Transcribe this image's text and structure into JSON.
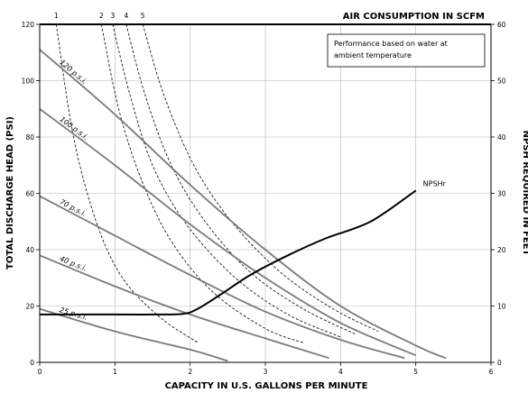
{
  "chart_data": {
    "type": "line",
    "xlabel": "CAPACITY IN U.S. GALLONS PER MINUTE",
    "ylabel": "TOTAL DISCHARGE HEAD (PSI)",
    "y2label": "NPSH REQUIRED IN FEET",
    "top_label": "AIR CONSUMPTION IN SCFM",
    "note": [
      "Performance based on water at",
      "ambient temperature"
    ],
    "xlim": [
      0,
      6
    ],
    "ylim": [
      0,
      120
    ],
    "y2lim": [
      0,
      60
    ],
    "xticks": [
      0,
      1,
      2,
      3,
      4,
      5,
      6
    ],
    "yticks": [
      0,
      20,
      40,
      60,
      80,
      100,
      120
    ],
    "y2ticks": [
      0,
      10,
      20,
      30,
      40,
      50,
      60
    ],
    "grid": true,
    "pressure_curves": [
      {
        "label": "120 p.s.i.",
        "points": [
          [
            0,
            111
          ],
          [
            1,
            88
          ],
          [
            2,
            63
          ],
          [
            3,
            40
          ],
          [
            4,
            20
          ],
          [
            5,
            6
          ],
          [
            5.4,
            1.5
          ]
        ]
      },
      {
        "label": "100 p.s.i.",
        "points": [
          [
            0,
            90
          ],
          [
            1,
            70
          ],
          [
            2,
            49
          ],
          [
            3,
            30
          ],
          [
            4,
            14
          ],
          [
            5,
            2.5
          ]
        ]
      },
      {
        "label": "70 p.s.i.",
        "points": [
          [
            0,
            59
          ],
          [
            1,
            45
          ],
          [
            2,
            31
          ],
          [
            3,
            18
          ],
          [
            4,
            8
          ],
          [
            4.85,
            1.5
          ]
        ]
      },
      {
        "label": "40 p.s.i.",
        "points": [
          [
            0,
            38
          ],
          [
            1,
            27
          ],
          [
            2,
            17
          ],
          [
            3,
            8.5
          ],
          [
            3.85,
            1.5
          ]
        ]
      },
      {
        "label": "25 p.s.i.",
        "points": [
          [
            0,
            19
          ],
          [
            1,
            11
          ],
          [
            2,
            4.5
          ],
          [
            2.5,
            0.5
          ]
        ]
      }
    ],
    "air_curves": [
      {
        "label": "1",
        "points": [
          [
            0.22,
            120
          ],
          [
            0.45,
            80
          ],
          [
            0.75,
            50
          ],
          [
            1.1,
            30
          ],
          [
            1.6,
            16
          ],
          [
            2.1,
            7
          ]
        ]
      },
      {
        "label": "2",
        "points": [
          [
            0.82,
            120
          ],
          [
            1.05,
            90
          ],
          [
            1.35,
            65
          ],
          [
            1.75,
            43
          ],
          [
            2.3,
            25
          ],
          [
            3,
            12
          ],
          [
            3.5,
            7
          ]
        ]
      },
      {
        "label": "3",
        "points": [
          [
            0.97,
            120
          ],
          [
            1.2,
            95
          ],
          [
            1.5,
            70
          ],
          [
            1.95,
            49
          ],
          [
            2.6,
            30
          ],
          [
            3.3,
            17
          ],
          [
            4,
            9
          ]
        ]
      },
      {
        "label": "4",
        "points": [
          [
            1.15,
            120
          ],
          [
            1.4,
            95
          ],
          [
            1.75,
            70
          ],
          [
            2.2,
            50
          ],
          [
            2.8,
            32
          ],
          [
            3.5,
            19
          ],
          [
            4.2,
            10
          ]
        ]
      },
      {
        "label": "5",
        "points": [
          [
            1.37,
            120
          ],
          [
            1.65,
            95
          ],
          [
            2.05,
            70
          ],
          [
            2.55,
            50
          ],
          [
            3.2,
            32
          ],
          [
            3.9,
            19
          ],
          [
            4.5,
            11
          ]
        ]
      }
    ],
    "npsh": {
      "label": "NPSHr",
      "points": [
        [
          0,
          8.5
        ],
        [
          1,
          8.5
        ],
        [
          1.5,
          8.5
        ],
        [
          1.9,
          8.6
        ],
        [
          2.1,
          9.5
        ],
        [
          2.4,
          12
        ],
        [
          2.8,
          15.5
        ],
        [
          3.3,
          19
        ],
        [
          3.8,
          22
        ],
        [
          4.4,
          25
        ],
        [
          5,
          30.5
        ]
      ]
    }
  }
}
